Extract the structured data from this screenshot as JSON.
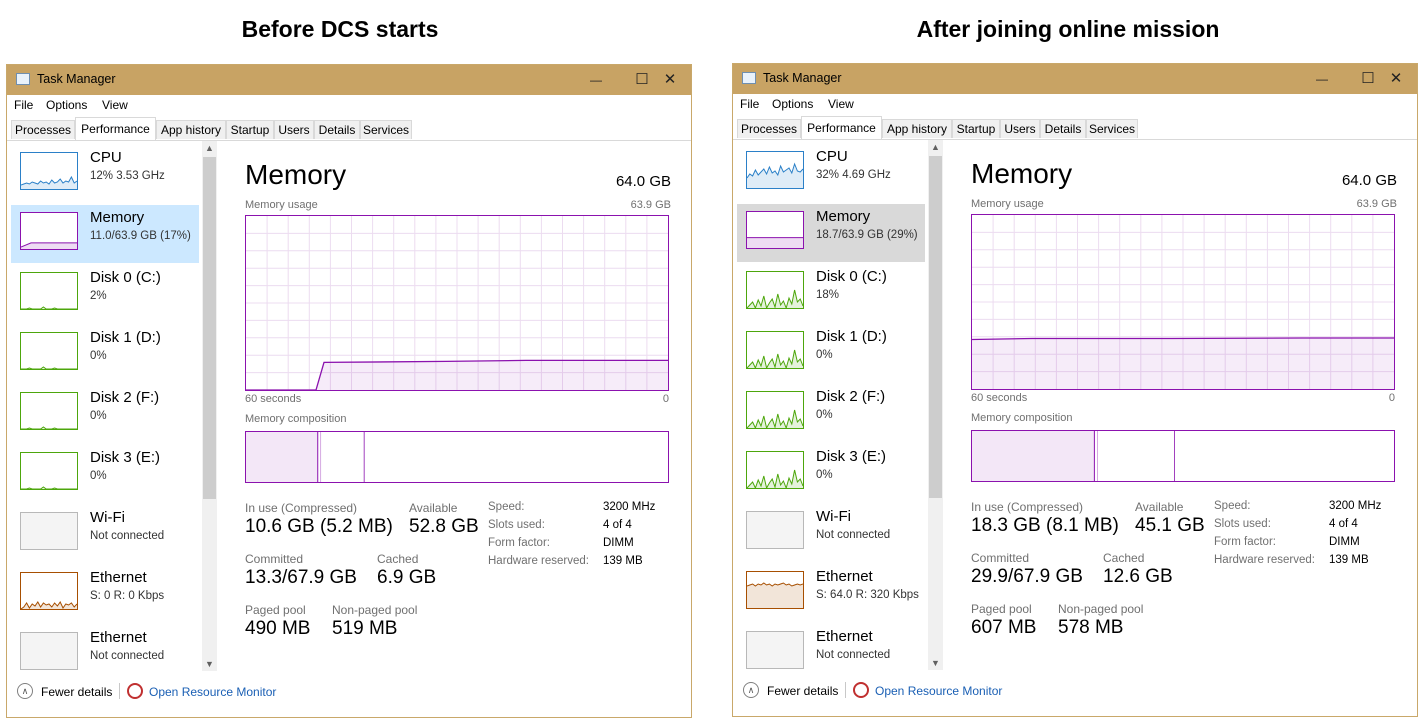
{
  "headings": {
    "left": "Before DCS starts",
    "right": "After joining online mission"
  },
  "colors": {
    "titlebar": "#c8a364",
    "memory_purple": "#8b12ae",
    "disk_green": "#4da60c",
    "cpu_blue": "#2b80c8",
    "ethernet_orange": "#a74f01",
    "link_blue": "#1a5fb4"
  },
  "window": {
    "title": "Task Manager",
    "menu": [
      "File",
      "Options",
      "View"
    ],
    "tabs": [
      "Processes",
      "Performance",
      "App history",
      "Startup",
      "Users",
      "Details",
      "Services"
    ],
    "active_tab": "Performance",
    "footer": {
      "fewer_details": "Fewer details",
      "open_resource_monitor": "Open Resource Monitor"
    },
    "labels": {
      "memory_title": "Memory",
      "memory_usage": "Memory usage",
      "sixty_seconds": "60 seconds",
      "zero": "0",
      "memory_composition": "Memory composition",
      "in_use": "In use (Compressed)",
      "available": "Available",
      "committed": "Committed",
      "cached": "Cached",
      "paged_pool": "Paged pool",
      "non_paged_pool": "Non-paged pool",
      "speed": "Speed:",
      "slots_used": "Slots used:",
      "form_factor": "Form factor:",
      "hardware_reserved": "Hardware reserved:"
    }
  },
  "panels": [
    {
      "sidebar": [
        {
          "name": "CPU",
          "sub": "12%  3.53 GHz",
          "kind": "cpu"
        },
        {
          "name": "Memory",
          "sub": "11.0/63.9 GB (17%)",
          "kind": "memory"
        },
        {
          "name": "Disk 0 (C:)",
          "sub": "2%",
          "kind": "disk"
        },
        {
          "name": "Disk 1 (D:)",
          "sub": "0%",
          "kind": "disk"
        },
        {
          "name": "Disk 2 (F:)",
          "sub": "0%",
          "kind": "disk"
        },
        {
          "name": "Disk 3 (E:)",
          "sub": "0%",
          "kind": "disk"
        },
        {
          "name": "Wi-Fi",
          "sub": "Not connected",
          "kind": "wifi"
        },
        {
          "name": "Ethernet",
          "sub": "S: 0  R: 0 Kbps",
          "kind": "ethernet"
        },
        {
          "name": "Ethernet",
          "sub": "Not connected",
          "kind": "ethernet-off"
        }
      ],
      "main": {
        "total": "64.0 GB",
        "max": "63.9 GB",
        "in_use": "10.6 GB (5.2 MB)",
        "available": "52.8 GB",
        "committed": "13.3/67.9 GB",
        "cached": "6.9 GB",
        "paged_pool": "490 MB",
        "non_paged_pool": "519 MB",
        "speed": "3200 MHz",
        "slots_used": "4 of 4",
        "form_factor": "DIMM",
        "hardware_reserved": "139 MB"
      },
      "usage_fraction_start": 0.0,
      "usage_fraction_end": 0.17,
      "composition_fractions": {
        "in_use": 0.17,
        "standby": 0.28
      }
    },
    {
      "sidebar": [
        {
          "name": "CPU",
          "sub": "32%  4.69 GHz",
          "kind": "cpu"
        },
        {
          "name": "Memory",
          "sub": "18.7/63.9 GB (29%)",
          "kind": "memory"
        },
        {
          "name": "Disk 0 (C:)",
          "sub": "18%",
          "kind": "disk"
        },
        {
          "name": "Disk 1 (D:)",
          "sub": "0%",
          "kind": "disk"
        },
        {
          "name": "Disk 2 (F:)",
          "sub": "0%",
          "kind": "disk"
        },
        {
          "name": "Disk 3 (E:)",
          "sub": "0%",
          "kind": "disk"
        },
        {
          "name": "Wi-Fi",
          "sub": "Not connected",
          "kind": "wifi"
        },
        {
          "name": "Ethernet",
          "sub": "S: 64.0  R: 320 Kbps",
          "kind": "ethernet"
        },
        {
          "name": "Ethernet",
          "sub": "Not connected",
          "kind": "ethernet-off"
        }
      ],
      "main": {
        "total": "64.0 GB",
        "max": "63.9 GB",
        "in_use": "18.3 GB (8.1 MB)",
        "available": "45.1 GB",
        "committed": "29.9/67.9 GB",
        "cached": "12.6 GB",
        "paged_pool": "607 MB",
        "non_paged_pool": "578 MB",
        "speed": "3200 MHz",
        "slots_used": "4 of 4",
        "form_factor": "DIMM",
        "hardware_reserved": "139 MB"
      },
      "usage_fraction_start": 0.29,
      "usage_fraction_end": 0.29,
      "composition_fractions": {
        "in_use": 0.29,
        "standby": 0.48
      }
    }
  ]
}
